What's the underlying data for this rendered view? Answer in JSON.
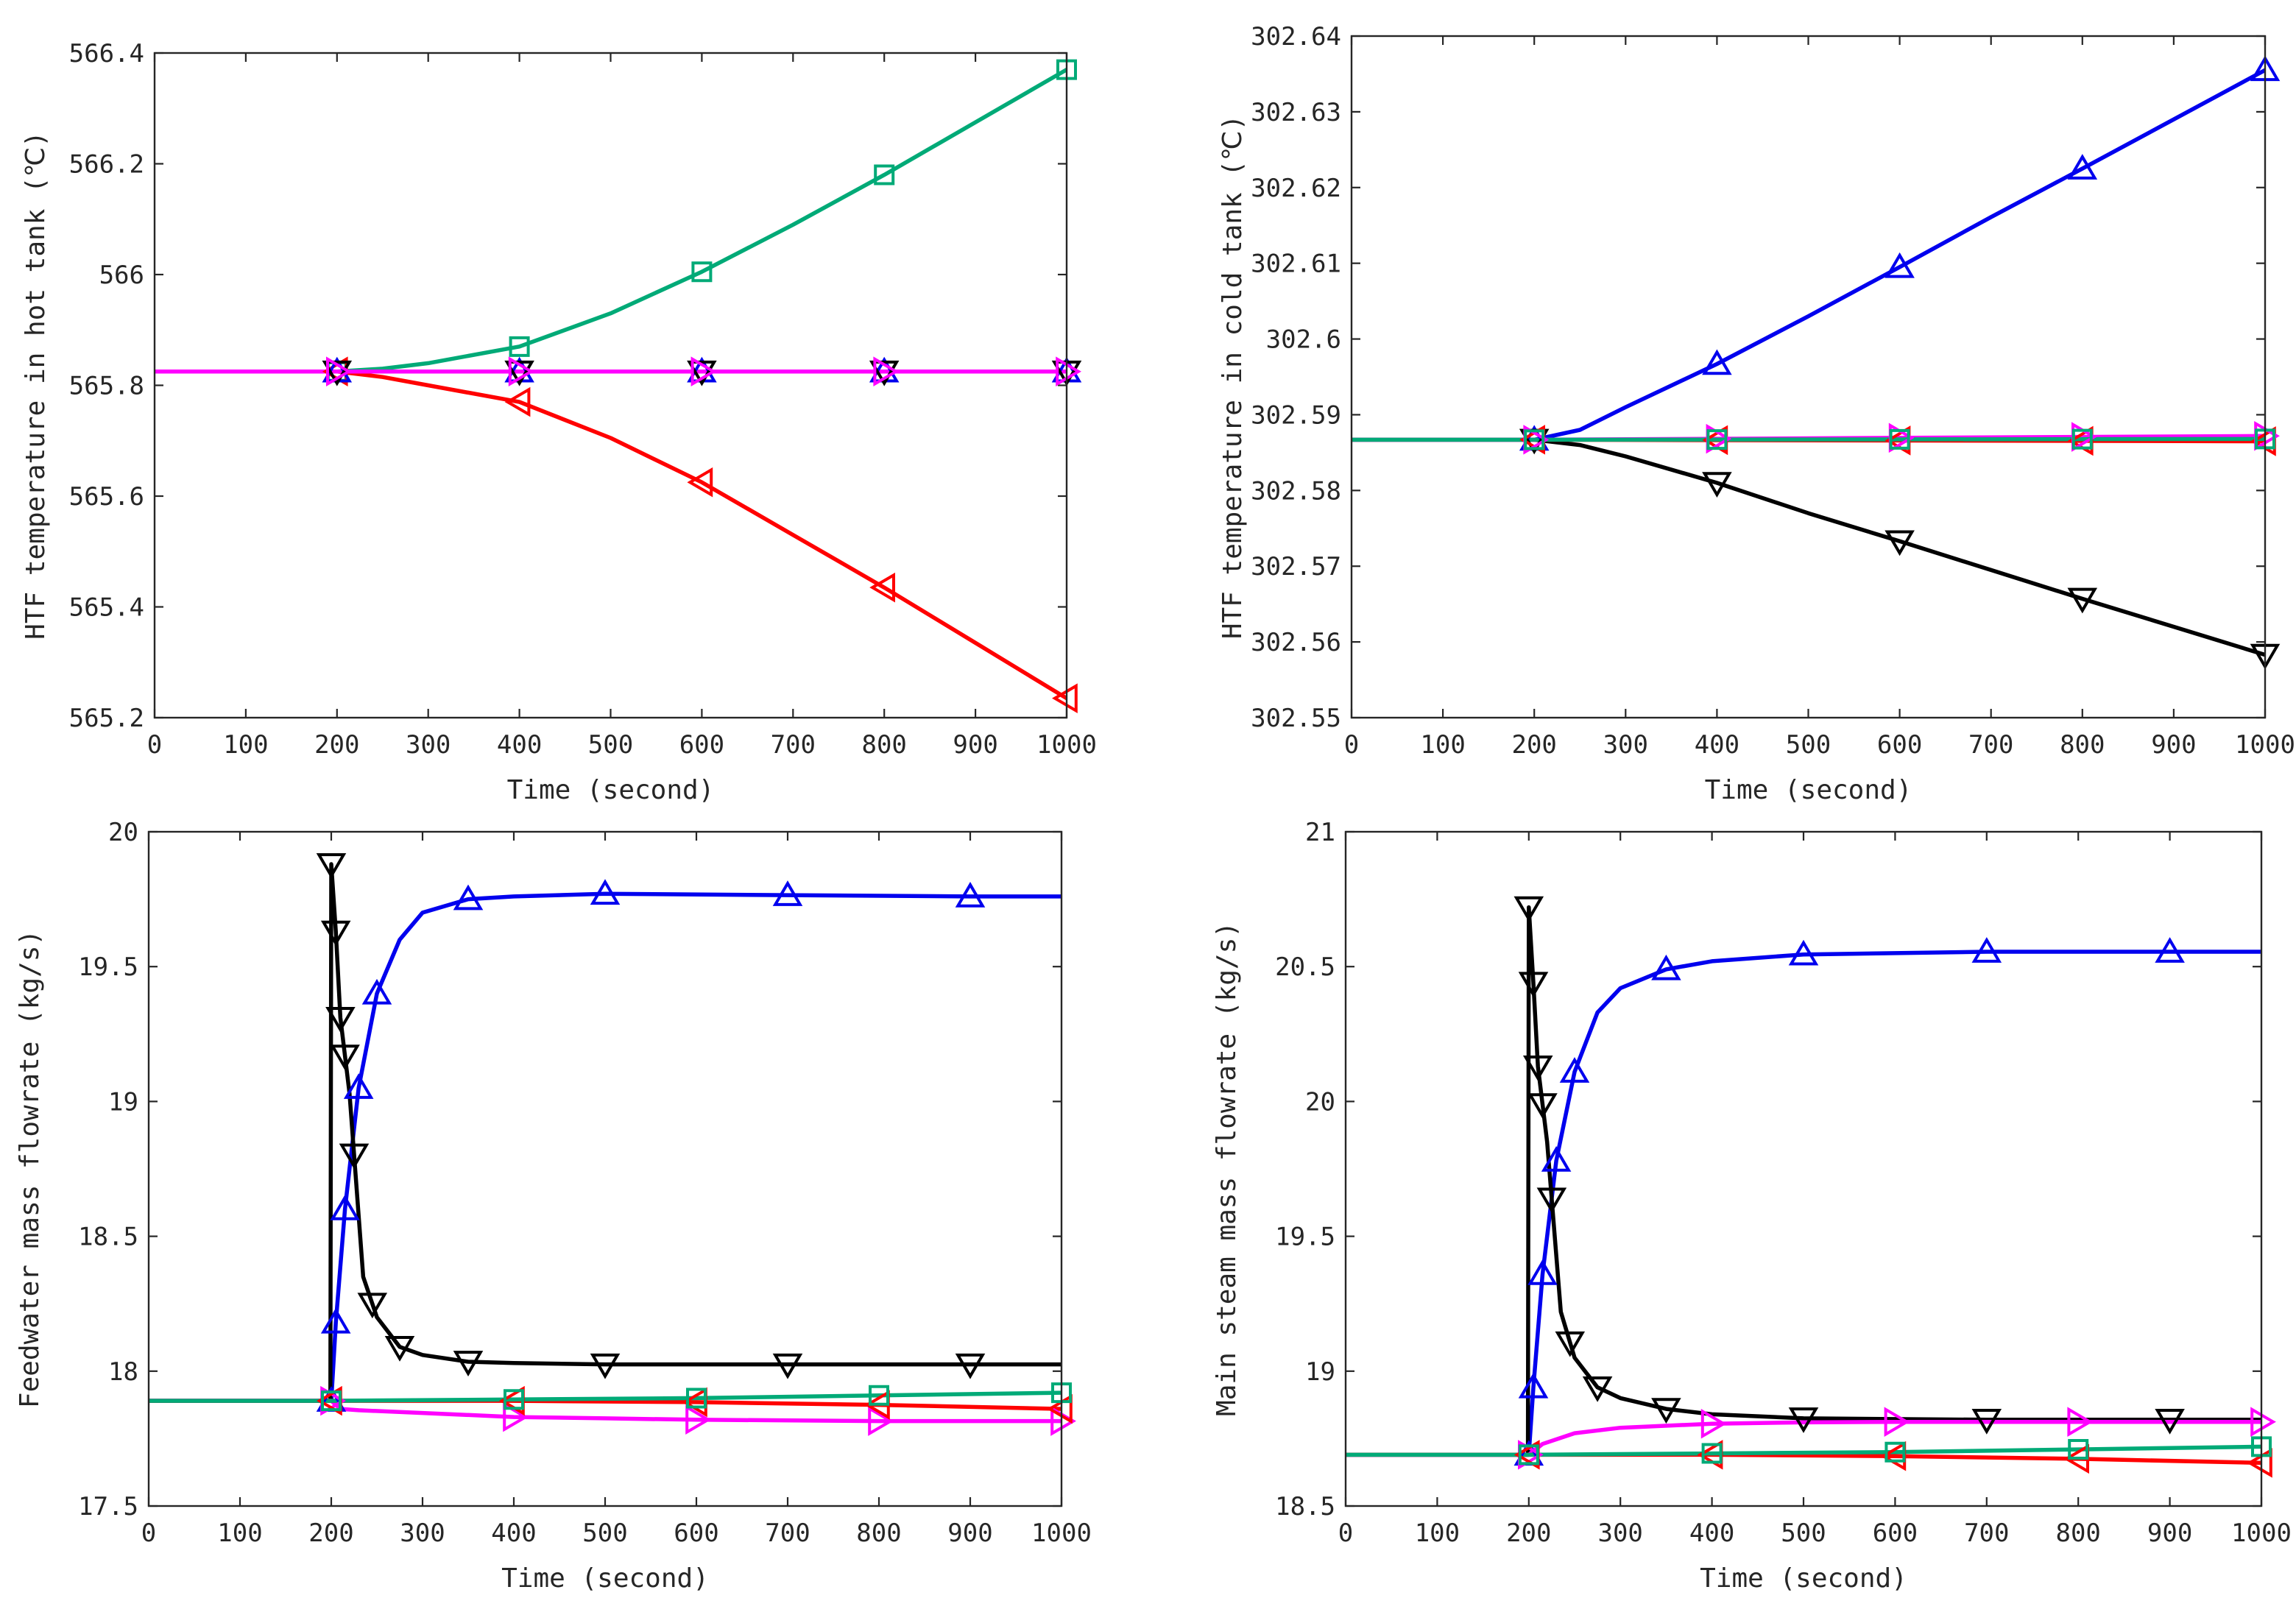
{
  "figure": {
    "series_meta": [
      {
        "key": "green",
        "color": "#00aa77",
        "marker": "square"
      },
      {
        "key": "red",
        "color": "#ff0000",
        "marker": "triangle-left"
      },
      {
        "key": "blue",
        "color": "#0000ee",
        "marker": "triangle-up"
      },
      {
        "key": "black",
        "color": "#000000",
        "marker": "triangle-down"
      },
      {
        "key": "magenta",
        "color": "#ff00ff",
        "marker": "triangle-right"
      }
    ]
  },
  "chart_data": [
    {
      "type": "line",
      "id": "hot-tank",
      "xlabel": "Time (second)",
      "ylabel": "HTF  temperature  in  hot  tank (℃)",
      "xlim": [
        0,
        1000
      ],
      "ylim": [
        565.2,
        566.4
      ],
      "xticks": [
        0,
        100,
        200,
        300,
        400,
        500,
        600,
        700,
        800,
        900,
        1000
      ],
      "yticks": [
        565.2,
        565.4,
        565.6,
        565.8,
        566,
        566.2,
        566.4
      ],
      "ytick_labels": [
        "565.2",
        "565.4",
        "565.6",
        "565.8",
        "566",
        "566.2",
        "566.4"
      ],
      "series": [
        {
          "key": "green",
          "x": [
            0,
            200,
            250,
            300,
            400,
            500,
            600,
            700,
            800,
            900,
            1000
          ],
          "y": [
            565.825,
            565.825,
            565.83,
            565.84,
            565.87,
            565.93,
            566.005,
            566.09,
            566.18,
            566.275,
            566.37
          ],
          "markers_x": [
            200,
            400,
            600,
            800,
            1000
          ]
        },
        {
          "key": "red",
          "x": [
            0,
            200,
            250,
            300,
            400,
            500,
            600,
            700,
            800,
            900,
            1000
          ],
          "y": [
            565.825,
            565.825,
            565.815,
            565.8,
            565.77,
            565.705,
            565.625,
            565.53,
            565.435,
            565.335,
            565.235
          ],
          "markers_x": [
            200,
            400,
            600,
            800,
            1000
          ]
        },
        {
          "key": "blue",
          "x": [
            0,
            1000
          ],
          "y": [
            565.825,
            565.825
          ],
          "markers_x": [
            200,
            400,
            600,
            800,
            1000
          ]
        },
        {
          "key": "black",
          "x": [
            0,
            1000
          ],
          "y": [
            565.825,
            565.825
          ],
          "markers_x": [
            200,
            400,
            600,
            800,
            1000
          ]
        },
        {
          "key": "magenta",
          "x": [
            0,
            1000
          ],
          "y": [
            565.825,
            565.825
          ],
          "markers_x": [
            200,
            400,
            600,
            800,
            1000
          ]
        }
      ]
    },
    {
      "type": "line",
      "id": "cold-tank",
      "xlabel": "Time (second)",
      "ylabel": "HTF  temperature  in  cold  tank (℃)",
      "xlim": [
        0,
        1000
      ],
      "ylim": [
        302.55,
        302.64
      ],
      "xticks": [
        0,
        100,
        200,
        300,
        400,
        500,
        600,
        700,
        800,
        900,
        1000
      ],
      "yticks": [
        302.55,
        302.56,
        302.57,
        302.58,
        302.59,
        302.6,
        302.61,
        302.62,
        302.63,
        302.64
      ],
      "ytick_labels": [
        "302.55",
        "302.56",
        "302.57",
        "302.58",
        "302.59",
        "302.6",
        "302.61",
        "302.62",
        "302.63",
        "302.64"
      ],
      "series": [
        {
          "key": "blue",
          "x": [
            0,
            200,
            250,
            300,
            400,
            500,
            600,
            700,
            800,
            900,
            1000
          ],
          "y": [
            302.5867,
            302.5867,
            302.588,
            302.591,
            302.5967,
            302.603,
            302.6095,
            302.6161,
            302.6225,
            302.629,
            302.6355
          ],
          "markers_x": [
            200,
            400,
            600,
            800,
            1000
          ]
        },
        {
          "key": "black",
          "x": [
            0,
            200,
            250,
            300,
            400,
            500,
            600,
            700,
            800,
            900,
            1000
          ],
          "y": [
            302.5867,
            302.5867,
            302.586,
            302.5845,
            302.581,
            302.577,
            302.5733,
            302.5695,
            302.5657,
            302.562,
            302.5583
          ],
          "markers_x": [
            200,
            400,
            600,
            800,
            1000
          ]
        },
        {
          "key": "red",
          "x": [
            0,
            200,
            1000
          ],
          "y": [
            302.5867,
            302.5867,
            302.5865
          ],
          "markers_x": [
            200,
            400,
            600,
            800,
            1000
          ]
        },
        {
          "key": "magenta",
          "x": [
            0,
            200,
            1000
          ],
          "y": [
            302.5867,
            302.5867,
            302.5872
          ],
          "markers_x": [
            200,
            400,
            600,
            800,
            1000
          ]
        },
        {
          "key": "green",
          "x": [
            0,
            200,
            1000
          ],
          "y": [
            302.5867,
            302.5867,
            302.5868
          ],
          "markers_x": [
            200,
            400,
            600,
            800,
            1000
          ]
        }
      ]
    },
    {
      "type": "line",
      "id": "feedwater",
      "xlabel": "Time (second)",
      "ylabel": "Feedwater  mass  flowrate (kg/s)",
      "xlim": [
        0,
        1000
      ],
      "ylim": [
        17.5,
        20
      ],
      "xticks": [
        0,
        100,
        200,
        300,
        400,
        500,
        600,
        700,
        800,
        900,
        1000
      ],
      "yticks": [
        17.5,
        18,
        18.5,
        19,
        19.5,
        20
      ],
      "ytick_labels": [
        "17.5",
        "18",
        "18.5",
        "19",
        "19.5",
        "20"
      ],
      "series": [
        {
          "key": "blue",
          "x": [
            0,
            200,
            205,
            215,
            230,
            250,
            275,
            300,
            350,
            400,
            500,
            700,
            900,
            1000
          ],
          "y": [
            17.89,
            17.89,
            18.18,
            18.6,
            19.05,
            19.4,
            19.6,
            19.7,
            19.75,
            19.76,
            19.77,
            19.765,
            19.76,
            19.76
          ],
          "markers_x": [
            200,
            205,
            215,
            230,
            250,
            350,
            500,
            700,
            900
          ]
        },
        {
          "key": "black",
          "x": [
            0,
            199,
            200,
            205,
            210,
            220,
            235,
            250,
            275,
            300,
            350,
            400,
            500,
            700,
            900,
            1000
          ],
          "y": [
            17.89,
            17.89,
            19.88,
            19.63,
            19.31,
            19.03,
            18.35,
            18.2,
            18.09,
            18.06,
            18.035,
            18.03,
            18.025,
            18.025,
            18.025,
            18.025
          ],
          "markers_x": [
            200,
            205,
            210,
            215,
            225,
            245,
            275,
            350,
            500,
            700,
            900
          ]
        },
        {
          "key": "magenta",
          "x": [
            0,
            200,
            210,
            230,
            300,
            400,
            500,
            600,
            800,
            1000
          ],
          "y": [
            17.89,
            17.89,
            17.86,
            17.855,
            17.845,
            17.83,
            17.825,
            17.82,
            17.815,
            17.815
          ],
          "markers_x": [
            200,
            400,
            600,
            800,
            1000
          ]
        },
        {
          "key": "red",
          "x": [
            0,
            200,
            400,
            600,
            800,
            1000
          ],
          "y": [
            17.89,
            17.89,
            17.89,
            17.885,
            17.875,
            17.86
          ],
          "markers_x": [
            200,
            400,
            600,
            800,
            1000
          ]
        },
        {
          "key": "green",
          "x": [
            0,
            200,
            400,
            600,
            800,
            1000
          ],
          "y": [
            17.89,
            17.89,
            17.895,
            17.9,
            17.91,
            17.92
          ],
          "markers_x": [
            200,
            400,
            600,
            800,
            1000
          ]
        }
      ]
    },
    {
      "type": "line",
      "id": "main-steam",
      "xlabel": "Time (second)",
      "ylabel": "Main  steam  mass  flowrate (kg/s)",
      "xlim": [
        0,
        1000
      ],
      "ylim": [
        18.5,
        21
      ],
      "xticks": [
        0,
        100,
        200,
        300,
        400,
        500,
        600,
        700,
        800,
        900,
        1000
      ],
      "yticks": [
        18.5,
        19,
        19.5,
        20,
        20.5,
        21
      ],
      "ytick_labels": [
        "18.5",
        "19",
        "19.5",
        "20",
        "20.5",
        "21"
      ],
      "series": [
        {
          "key": "blue",
          "x": [
            0,
            200,
            205,
            215,
            230,
            250,
            275,
            300,
            350,
            400,
            500,
            700,
            900,
            1000
          ],
          "y": [
            18.69,
            18.69,
            18.94,
            19.36,
            19.78,
            20.11,
            20.33,
            20.42,
            20.49,
            20.52,
            20.545,
            20.555,
            20.555,
            20.555
          ],
          "markers_x": [
            200,
            205,
            215,
            230,
            250,
            350,
            500,
            700,
            900
          ]
        },
        {
          "key": "black",
          "x": [
            0,
            199,
            200,
            205,
            210,
            220,
            235,
            250,
            275,
            300,
            350,
            400,
            500,
            700,
            900,
            1000
          ],
          "y": [
            18.69,
            18.69,
            20.72,
            20.44,
            20.13,
            19.85,
            19.22,
            19.05,
            18.94,
            18.9,
            18.86,
            18.84,
            18.825,
            18.82,
            18.82,
            18.82
          ],
          "markers_x": [
            200,
            205,
            210,
            215,
            225,
            245,
            275,
            350,
            500,
            700,
            900
          ]
        },
        {
          "key": "magenta",
          "x": [
            0,
            200,
            215,
            250,
            300,
            400,
            500,
            600,
            800,
            1000
          ],
          "y": [
            18.69,
            18.69,
            18.73,
            18.77,
            18.79,
            18.805,
            18.81,
            18.812,
            18.812,
            18.812
          ],
          "markers_x": [
            200,
            400,
            600,
            800,
            1000
          ]
        },
        {
          "key": "red",
          "x": [
            0,
            200,
            400,
            600,
            800,
            1000
          ],
          "y": [
            18.69,
            18.69,
            18.69,
            18.685,
            18.675,
            18.66
          ],
          "markers_x": [
            200,
            400,
            600,
            800,
            1000
          ]
        },
        {
          "key": "green",
          "x": [
            0,
            200,
            400,
            600,
            800,
            1000
          ],
          "y": [
            18.69,
            18.69,
            18.695,
            18.7,
            18.71,
            18.72
          ],
          "markers_x": [
            200,
            400,
            600,
            800,
            1000
          ]
        }
      ]
    }
  ]
}
